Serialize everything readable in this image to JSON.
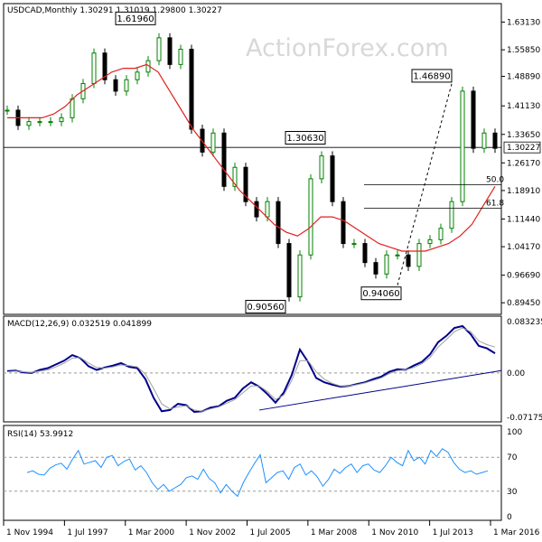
{
  "watermark": "ActionForex.com",
  "colors": {
    "bull": "#008000",
    "bear": "#000000",
    "sma": "#e02020",
    "macd": "#00008b",
    "signal": "#a0a0a0",
    "rsi": "#1e90ff",
    "current_line": "#000000"
  },
  "chart_data": [
    {
      "type": "candlestick",
      "title": "USDCAD,Monthly  1.30291 1.31019 1.29800 1.30227",
      "ylim": [
        0.8783,
        1.6513
      ],
      "y_ticks": [
        0.8945,
        0.9669,
        1.0417,
        1.1144,
        1.1891,
        1.2617,
        1.3365,
        1.4113,
        1.4889,
        1.5585,
        1.6313
      ],
      "y_tick_labels": [
        "0.89450",
        "0.96690",
        "1.04170",
        "1.11440",
        "1.18910",
        "1.26170",
        "1.33650",
        "1.41130",
        "1.48890",
        "1.55850",
        "1.63130"
      ],
      "current_value": 1.30227,
      "current_label": "1.30227",
      "x_ticks": [
        "1 Nov 1994",
        "1 Jul 1997",
        "1 Mar 2000",
        "1 Nov 2002",
        "1 Jul 2005",
        "1 Mar 2008",
        "1 Nov 2010",
        "1 Jul 2013",
        "1 Mar 2016"
      ],
      "series": [
        {
          "name": "Close",
          "x": [
            "Nov 1994",
            "Jun 1995",
            "Dec 1995",
            "Jun 1996",
            "Dec 1996",
            "Jun 1997",
            "Dec 1997",
            "Jun 1998",
            "Dec 1998",
            "Jun 1999",
            "Dec 1999",
            "Jun 2000",
            "Dec 2000",
            "Jun 2001",
            "Dec 2001",
            "Jun 2002",
            "Dec 2002",
            "Jun 2003",
            "Dec 2003",
            "Jun 2004",
            "Dec 2004",
            "Jun 2005",
            "Dec 2005",
            "Jun 2006",
            "Dec 2006",
            "Jun 2007",
            "Nov 2007",
            "Jun 2008",
            "Dec 2008",
            "Mar 2009",
            "Jun 2009",
            "Dec 2009",
            "Jun 2010",
            "Dec 2010",
            "Jun 2011",
            "Dec 2011",
            "Jun 2012",
            "Dec 2012",
            "Jun 2013",
            "Dec 2013",
            "Jun 2014",
            "Dec 2014",
            "Jan 2016",
            "Jun 2016",
            "Dec 2016",
            "Jun 2017"
          ],
          "values": [
            1.4,
            1.36,
            1.37,
            1.37,
            1.37,
            1.38,
            1.43,
            1.47,
            1.55,
            1.48,
            1.45,
            1.48,
            1.5,
            1.53,
            1.59,
            1.52,
            1.56,
            1.35,
            1.29,
            1.34,
            1.2,
            1.25,
            1.16,
            1.12,
            1.16,
            1.05,
            0.91,
            1.02,
            1.22,
            1.28,
            1.16,
            1.05,
            1.05,
            1.0,
            0.97,
            1.02,
            1.02,
            0.99,
            1.05,
            1.06,
            1.09,
            1.16,
            1.45,
            1.3,
            1.34,
            1.3
          ]
        }
      ],
      "sma": [
        1.38,
        1.38,
        1.38,
        1.38,
        1.39,
        1.41,
        1.44,
        1.46,
        1.48,
        1.5,
        1.51,
        1.51,
        1.52,
        1.5,
        1.45,
        1.4,
        1.35,
        1.31,
        1.27,
        1.23,
        1.19,
        1.16,
        1.13,
        1.1,
        1.08,
        1.07,
        1.09,
        1.12,
        1.12,
        1.11,
        1.09,
        1.07,
        1.05,
        1.04,
        1.03,
        1.03,
        1.03,
        1.04,
        1.05,
        1.07,
        1.1,
        1.15,
        1.2
      ],
      "annotations": [
        {
          "label": "1.61960",
          "value": 1.6196
        },
        {
          "label": "1.30630",
          "value": 1.3063
        },
        {
          "label": "0.90560",
          "value": 0.9056
        },
        {
          "label": "0.94060",
          "value": 0.9406
        },
        {
          "label": "1.46890",
          "value": 1.4689
        }
      ],
      "fib_levels": [
        {
          "label": "50.0",
          "value": 1.2047
        },
        {
          "label": "61.8",
          "value": 1.1426
        }
      ]
    },
    {
      "type": "line",
      "title": "MACD(12,26,9) 0.032519 0.041899",
      "ylim": [
        -0.0718,
        0.0833
      ],
      "y_ticks": [
        0.083235,
        0.0,
        -0.071752
      ],
      "y_tick_labels": [
        "0.083235",
        "0.00",
        "-0.071752"
      ],
      "reference_line": 0.0,
      "series": [
        {
          "name": "MACD",
          "values": [
            0.003,
            0.004,
            0.001,
            0.0,
            0.005,
            0.008,
            0.014,
            0.02,
            0.029,
            0.024,
            0.011,
            0.005,
            0.009,
            0.012,
            0.016,
            0.01,
            0.008,
            -0.01,
            -0.04,
            -0.062,
            -0.06,
            -0.05,
            -0.052,
            -0.063,
            -0.062,
            -0.056,
            -0.054,
            -0.045,
            -0.04,
            -0.025,
            -0.015,
            -0.022,
            -0.034,
            -0.048,
            -0.032,
            -0.003,
            0.038,
            0.018,
            -0.008,
            -0.015,
            -0.019,
            -0.022,
            -0.021,
            -0.018,
            -0.015,
            -0.01,
            -0.006,
            0.002,
            0.006,
            0.005,
            0.012,
            0.018,
            0.03,
            0.05,
            0.06,
            0.073,
            0.076,
            0.063,
            0.044,
            0.04,
            0.032
          ]
        },
        {
          "name": "Signal",
          "values": [
            0.002,
            0.003,
            0.002,
            0.001,
            0.003,
            0.005,
            0.01,
            0.016,
            0.024,
            0.025,
            0.016,
            0.009,
            0.008,
            0.01,
            0.013,
            0.012,
            0.01,
            -0.002,
            -0.025,
            -0.05,
            -0.058,
            -0.055,
            -0.053,
            -0.06,
            -0.062,
            -0.058,
            -0.055,
            -0.049,
            -0.043,
            -0.032,
            -0.021,
            -0.021,
            -0.03,
            -0.043,
            -0.036,
            -0.012,
            0.02,
            0.02,
            0.002,
            -0.01,
            -0.017,
            -0.021,
            -0.021,
            -0.019,
            -0.016,
            -0.012,
            -0.008,
            -0.001,
            0.004,
            0.005,
            0.009,
            0.015,
            0.025,
            0.042,
            0.054,
            0.067,
            0.073,
            0.067,
            0.052,
            0.046,
            0.042
          ]
        }
      ],
      "trendline": "support"
    },
    {
      "type": "line",
      "title": "RSI(14) 53.9912",
      "ylim": [
        0,
        100
      ],
      "y_ticks": [
        100,
        70,
        30,
        0
      ],
      "y_tick_labels": [
        "100",
        "70",
        "30",
        "0"
      ],
      "reference_lines": [
        70,
        30
      ],
      "series": [
        {
          "name": "RSI",
          "values": [
            52,
            54,
            50,
            49,
            57,
            61,
            63,
            56,
            68,
            78,
            62,
            64,
            66,
            58,
            70,
            72,
            60,
            65,
            68,
            55,
            60,
            52,
            40,
            32,
            38,
            30,
            34,
            38,
            46,
            48,
            44,
            56,
            45,
            40,
            28,
            38,
            30,
            24,
            40,
            52,
            63,
            73,
            40,
            46,
            52,
            54,
            44,
            58,
            62,
            49,
            54,
            47,
            36,
            44,
            56,
            51,
            58,
            62,
            52,
            60,
            62,
            55,
            52,
            60,
            70,
            64,
            60,
            78,
            66,
            70,
            62,
            78,
            71,
            80,
            76,
            64,
            56,
            52,
            54,
            50,
            52,
            54
          ]
        }
      ]
    }
  ]
}
